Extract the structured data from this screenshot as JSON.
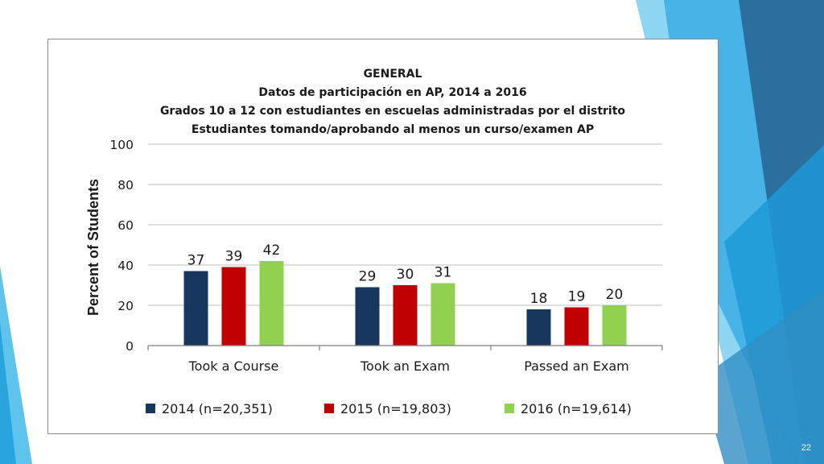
{
  "slide": {
    "page_number": "22"
  },
  "chart_data": {
    "type": "bar",
    "title_lines": [
      "GENERAL",
      "Datos de participación en AP, 2014 a 2016",
      "Grados 10 a 12 con estudiantes en escuelas administradas por el distrito",
      "Estudiantes tomando/aprobando al menos un curso/examen AP"
    ],
    "xlabel": "",
    "ylabel": "Percent of Students",
    "ylim": [
      0,
      100
    ],
    "yticks": [
      0,
      20,
      40,
      60,
      80,
      100
    ],
    "grid": true,
    "legend_position": "bottom",
    "categories": [
      "Took a Course",
      "Took an Exam",
      "Passed an Exam"
    ],
    "series": [
      {
        "name": "2014 (n=20,351)",
        "color": "#17375e",
        "values": [
          37,
          29,
          18
        ]
      },
      {
        "name": "2015 (n=19,803)",
        "color": "#c00000",
        "values": [
          39,
          30,
          19
        ]
      },
      {
        "name": "2016 (n=19,614)",
        "color": "#92d050",
        "values": [
          42,
          31,
          20
        ]
      }
    ]
  }
}
